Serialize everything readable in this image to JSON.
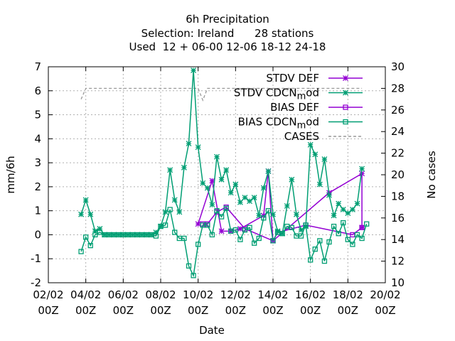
{
  "chart_data": {
    "type": "line",
    "title": {
      "line1": "6h Precipitation",
      "line2": "Selection: Ireland      28 stations",
      "line3": "Used  12 + 06-00 12-06 18-12 24-18"
    },
    "xlabel": "Date",
    "ylabel": "mm/6h",
    "y2label": "No cases",
    "xlim": [
      0,
      18
    ],
    "ylim": [
      -2,
      7
    ],
    "y2lim": [
      10,
      30
    ],
    "grid": true,
    "legend_position": "top-right",
    "x_ticks": [
      {
        "x": 0,
        "l1": "02/02",
        "l2": "00Z"
      },
      {
        "x": 2,
        "l1": "04/02",
        "l2": "00Z"
      },
      {
        "x": 4,
        "l1": "06/02",
        "l2": "00Z"
      },
      {
        "x": 6,
        "l1": "08/02",
        "l2": "00Z"
      },
      {
        "x": 8,
        "l1": "10/02",
        "l2": "00Z"
      },
      {
        "x": 10,
        "l1": "12/02",
        "l2": "00Z"
      },
      {
        "x": 12,
        "l1": "14/02",
        "l2": "00Z"
      },
      {
        "x": 14,
        "l1": "16/02",
        "l2": "00Z"
      },
      {
        "x": 16,
        "l1": "18/02",
        "l2": "00Z"
      },
      {
        "x": 18,
        "l1": "20/02",
        "l2": "00Z"
      }
    ],
    "y_ticks": [
      -2,
      -1,
      0,
      1,
      2,
      3,
      4,
      5,
      6,
      7
    ],
    "y2_ticks": [
      10,
      12,
      14,
      16,
      18,
      20,
      22,
      24,
      26,
      28,
      30
    ],
    "series": [
      {
        "name": "STDV DEF",
        "marker": "star",
        "color": "#9400d3",
        "points": [
          [
            8.0,
            0.45
          ],
          [
            8.75,
            2.25
          ],
          [
            9.25,
            0.15
          ],
          [
            9.75,
            0.15
          ],
          [
            10.25,
            0.25
          ],
          [
            11.5,
            0.8
          ],
          [
            11.75,
            2.65
          ],
          [
            12.0,
            -0.25
          ],
          [
            15.0,
            1.75
          ],
          [
            16.75,
            2.55
          ],
          [
            16.75,
            0.3
          ]
        ]
      },
      {
        "name": "STDV CDCN_mod",
        "marker": "star",
        "color": "#009e73",
        "points": [
          [
            1.75,
            0.85
          ],
          [
            2.0,
            1.45
          ],
          [
            2.25,
            0.85
          ],
          [
            2.5,
            0.15
          ],
          [
            2.75,
            0.25
          ],
          [
            3.0,
            0.0
          ],
          [
            3.25,
            0.0
          ],
          [
            3.5,
            0.0
          ],
          [
            3.75,
            0.0
          ],
          [
            4.0,
            0.0
          ],
          [
            4.25,
            0.0
          ],
          [
            4.5,
            0.0
          ],
          [
            4.75,
            0.0
          ],
          [
            5.0,
            0.0
          ],
          [
            5.25,
            0.0
          ],
          [
            5.5,
            0.0
          ],
          [
            5.75,
            0.1
          ],
          [
            6.0,
            0.35
          ],
          [
            6.25,
            0.95
          ],
          [
            6.5,
            2.7
          ],
          [
            6.75,
            1.45
          ],
          [
            7.0,
            0.95
          ],
          [
            7.25,
            2.8
          ],
          [
            7.5,
            3.8
          ],
          [
            7.75,
            6.85
          ],
          [
            8.0,
            3.65
          ],
          [
            8.25,
            2.15
          ],
          [
            8.5,
            1.95
          ],
          [
            8.75,
            1.25
          ],
          [
            9.0,
            3.25
          ],
          [
            9.25,
            2.3
          ],
          [
            9.5,
            2.7
          ],
          [
            9.75,
            1.75
          ],
          [
            10.0,
            2.1
          ],
          [
            10.25,
            1.35
          ],
          [
            10.5,
            1.55
          ],
          [
            10.75,
            1.4
          ],
          [
            11.0,
            1.55
          ],
          [
            11.25,
            0.8
          ],
          [
            11.5,
            1.95
          ],
          [
            11.75,
            2.65
          ],
          [
            12.0,
            0.85
          ],
          [
            12.25,
            0.15
          ],
          [
            12.5,
            0.05
          ],
          [
            12.75,
            1.2
          ],
          [
            13.0,
            2.3
          ],
          [
            13.25,
            0.85
          ],
          [
            13.5,
            0.2
          ],
          [
            13.75,
            0.35
          ],
          [
            14.0,
            3.75
          ],
          [
            14.25,
            3.35
          ],
          [
            14.5,
            2.1
          ],
          [
            14.75,
            3.15
          ],
          [
            15.0,
            1.65
          ],
          [
            15.25,
            0.8
          ],
          [
            15.5,
            1.3
          ],
          [
            15.75,
            1.05
          ],
          [
            16.0,
            0.9
          ],
          [
            16.25,
            1.05
          ],
          [
            16.5,
            1.3
          ],
          [
            16.75,
            2.75
          ]
        ]
      },
      {
        "name": "BIAS DEF",
        "marker": "square",
        "color": "#9400d3",
        "points": [
          [
            8.25,
            0.45
          ],
          [
            8.5,
            0.45
          ],
          [
            9.0,
            0.95
          ],
          [
            9.5,
            1.15
          ],
          [
            10.5,
            0.25
          ],
          [
            12.0,
            -0.25
          ],
          [
            12.25,
            0.1
          ],
          [
            13.75,
            0.4
          ],
          [
            16.25,
            0.0
          ],
          [
            16.75,
            0.3
          ]
        ]
      },
      {
        "name": "BIAS CDCN_mod",
        "marker": "square",
        "color": "#009e73",
        "points": [
          [
            1.75,
            -0.7
          ],
          [
            2.0,
            -0.1
          ],
          [
            2.25,
            -0.45
          ],
          [
            2.5,
            0.0
          ],
          [
            2.75,
            0.1
          ],
          [
            3.0,
            0.0
          ],
          [
            3.25,
            0.0
          ],
          [
            3.5,
            0.0
          ],
          [
            3.75,
            0.0
          ],
          [
            4.0,
            0.0
          ],
          [
            4.25,
            0.0
          ],
          [
            4.5,
            0.0
          ],
          [
            4.75,
            0.0
          ],
          [
            5.0,
            0.0
          ],
          [
            5.25,
            0.0
          ],
          [
            5.5,
            0.0
          ],
          [
            5.75,
            -0.05
          ],
          [
            6.0,
            0.35
          ],
          [
            6.25,
            0.4
          ],
          [
            6.5,
            1.05
          ],
          [
            6.75,
            0.1
          ],
          [
            7.0,
            -0.15
          ],
          [
            7.25,
            -0.15
          ],
          [
            7.5,
            -1.3
          ],
          [
            7.75,
            -1.7
          ],
          [
            8.0,
            -0.4
          ],
          [
            8.25,
            0.4
          ],
          [
            8.5,
            0.4
          ],
          [
            8.75,
            0.0
          ],
          [
            9.0,
            1.0
          ],
          [
            9.25,
            0.75
          ],
          [
            9.5,
            1.1
          ],
          [
            9.75,
            0.15
          ],
          [
            10.0,
            0.2
          ],
          [
            10.25,
            -0.2
          ],
          [
            10.5,
            0.2
          ],
          [
            10.75,
            0.3
          ],
          [
            11.0,
            -0.35
          ],
          [
            11.25,
            -0.15
          ],
          [
            11.5,
            0.7
          ],
          [
            11.75,
            1.0
          ],
          [
            12.0,
            -0.25
          ],
          [
            12.25,
            0.1
          ],
          [
            12.5,
            0.05
          ],
          [
            12.75,
            0.35
          ],
          [
            13.0,
            0.3
          ],
          [
            13.25,
            -0.05
          ],
          [
            13.5,
            -0.05
          ],
          [
            13.75,
            0.4
          ],
          [
            14.0,
            -1.05
          ],
          [
            14.25,
            -0.6
          ],
          [
            14.5,
            -0.25
          ],
          [
            14.75,
            -1.1
          ],
          [
            15.0,
            -0.3
          ],
          [
            15.25,
            0.35
          ],
          [
            15.5,
            0.05
          ],
          [
            15.75,
            0.5
          ],
          [
            16.0,
            -0.2
          ],
          [
            16.25,
            -0.4
          ],
          [
            16.5,
            0.0
          ],
          [
            16.75,
            -0.15
          ],
          [
            17.0,
            0.45
          ]
        ]
      },
      {
        "name": "CASES",
        "marker": "none",
        "axis": "y2",
        "color": "#999999",
        "dash": true,
        "points": [
          [
            1.75,
            27.0
          ],
          [
            2.0,
            28.0
          ],
          [
            7.75,
            28.0
          ],
          [
            8.0,
            28.0
          ],
          [
            8.25,
            26.9
          ],
          [
            8.5,
            28.0
          ],
          [
            16.75,
            28.0
          ]
        ]
      }
    ]
  }
}
